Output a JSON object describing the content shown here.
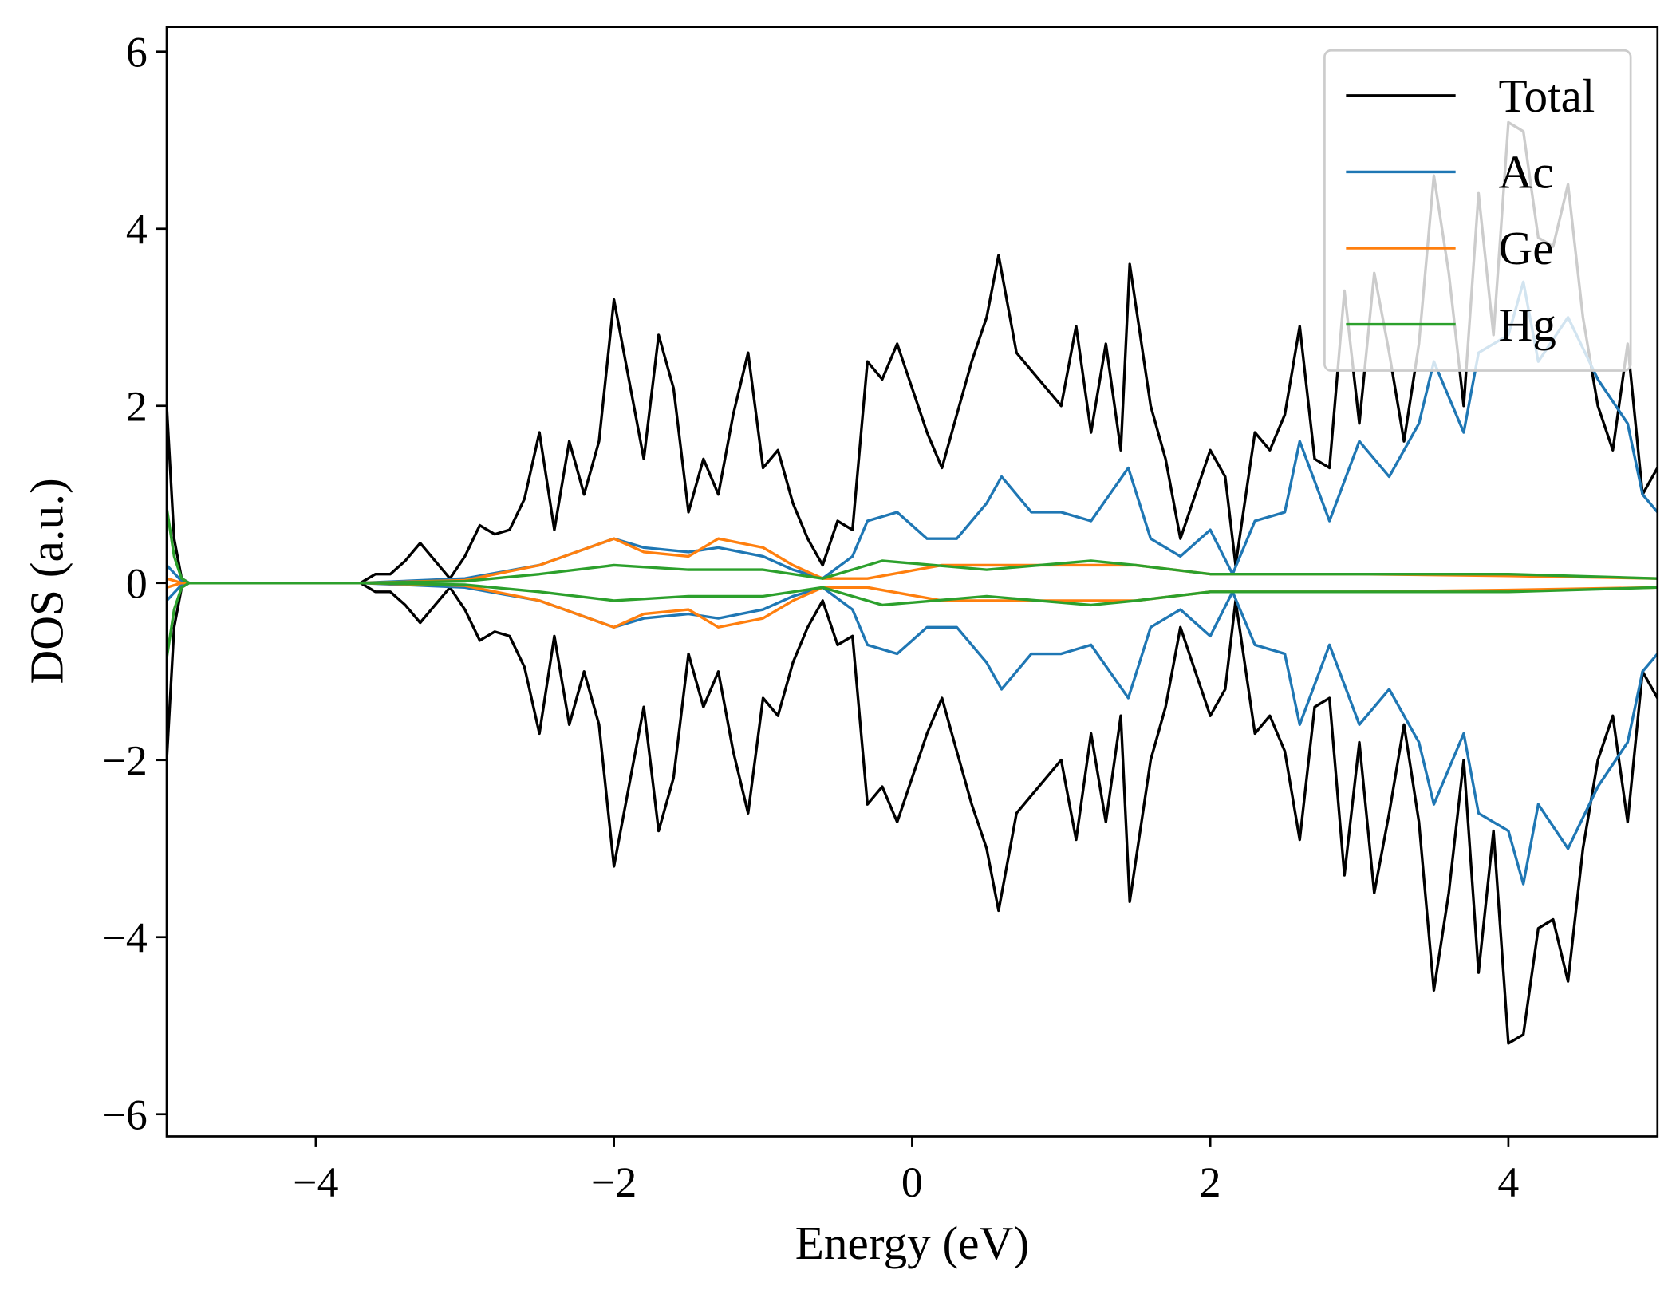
{
  "chart_data": {
    "type": "line",
    "title": "",
    "xlabel": "Energy (eV)",
    "ylabel": "DOS (a.u.)",
    "xlim": [
      -5,
      5
    ],
    "ylim": [
      -6.25,
      6.28
    ],
    "xticks": [
      -4,
      -2,
      0,
      2,
      4
    ],
    "xtick_labels": [
      "−4",
      "−2",
      "0",
      "2",
      "4"
    ],
    "yticks": [
      6,
      4,
      2,
      0,
      -2,
      -4,
      -6
    ],
    "ytick_labels": [
      "6",
      "4",
      "2",
      "0",
      "−2",
      "−4",
      "−6"
    ],
    "grid": false,
    "legend_position": "top-right",
    "mirrored_spin_down": true,
    "series": [
      {
        "name": "Total",
        "color": "#000000",
        "points": [
          [
            -5.0,
            2.0
          ],
          [
            -4.95,
            0.5
          ],
          [
            -4.9,
            0.05
          ],
          [
            -4.85,
            0
          ],
          [
            -3.7,
            0
          ],
          [
            -3.6,
            0.1
          ],
          [
            -3.5,
            0.1
          ],
          [
            -3.4,
            0.25
          ],
          [
            -3.3,
            0.45
          ],
          [
            -3.2,
            0.25
          ],
          [
            -3.1,
            0.05
          ],
          [
            -3.0,
            0.3
          ],
          [
            -2.9,
            0.65
          ],
          [
            -2.8,
            0.55
          ],
          [
            -2.7,
            0.6
          ],
          [
            -2.6,
            0.95
          ],
          [
            -2.5,
            1.7
          ],
          [
            -2.4,
            0.6
          ],
          [
            -2.3,
            1.6
          ],
          [
            -2.2,
            1.0
          ],
          [
            -2.1,
            1.6
          ],
          [
            -2.0,
            3.2
          ],
          [
            -1.9,
            2.3
          ],
          [
            -1.8,
            1.4
          ],
          [
            -1.7,
            2.8
          ],
          [
            -1.6,
            2.2
          ],
          [
            -1.5,
            0.8
          ],
          [
            -1.4,
            1.4
          ],
          [
            -1.3,
            1.0
          ],
          [
            -1.2,
            1.9
          ],
          [
            -1.1,
            2.6
          ],
          [
            -1.0,
            1.3
          ],
          [
            -0.9,
            1.5
          ],
          [
            -0.8,
            0.9
          ],
          [
            -0.7,
            0.5
          ],
          [
            -0.6,
            0.2
          ],
          [
            -0.5,
            0.7
          ],
          [
            -0.4,
            0.6
          ],
          [
            -0.3,
            2.5
          ],
          [
            -0.2,
            2.3
          ],
          [
            -0.1,
            2.7
          ],
          [
            0.0,
            2.2
          ],
          [
            0.1,
            1.7
          ],
          [
            0.2,
            1.3
          ],
          [
            0.3,
            1.9
          ],
          [
            0.4,
            2.5
          ],
          [
            0.5,
            3.0
          ],
          [
            0.58,
            3.7
          ],
          [
            0.7,
            2.6
          ],
          [
            0.8,
            2.4
          ],
          [
            0.9,
            2.2
          ],
          [
            1.0,
            2.0
          ],
          [
            1.1,
            2.9
          ],
          [
            1.2,
            1.7
          ],
          [
            1.3,
            2.7
          ],
          [
            1.4,
            1.5
          ],
          [
            1.46,
            3.6
          ],
          [
            1.6,
            2.0
          ],
          [
            1.7,
            1.4
          ],
          [
            1.8,
            0.5
          ],
          [
            1.9,
            1.0
          ],
          [
            2.0,
            1.5
          ],
          [
            2.1,
            1.2
          ],
          [
            2.17,
            0.2
          ],
          [
            2.3,
            1.7
          ],
          [
            2.4,
            1.5
          ],
          [
            2.5,
            1.9
          ],
          [
            2.6,
            2.9
          ],
          [
            2.7,
            1.4
          ],
          [
            2.8,
            1.3
          ],
          [
            2.9,
            3.3
          ],
          [
            3.0,
            1.8
          ],
          [
            3.1,
            3.5
          ],
          [
            3.2,
            2.6
          ],
          [
            3.3,
            1.6
          ],
          [
            3.4,
            2.7
          ],
          [
            3.5,
            4.6
          ],
          [
            3.6,
            3.5
          ],
          [
            3.7,
            2.0
          ],
          [
            3.8,
            4.4
          ],
          [
            3.9,
            2.8
          ],
          [
            4.0,
            5.2
          ],
          [
            4.1,
            5.1
          ],
          [
            4.2,
            3.9
          ],
          [
            4.3,
            3.8
          ],
          [
            4.4,
            4.5
          ],
          [
            4.5,
            3.0
          ],
          [
            4.6,
            2.0
          ],
          [
            4.7,
            1.5
          ],
          [
            4.8,
            2.7
          ],
          [
            4.9,
            1.0
          ],
          [
            5.0,
            1.3
          ]
        ]
      },
      {
        "name": "Ac",
        "color": "#1f77b4",
        "points": [
          [
            -5.0,
            0.2
          ],
          [
            -4.9,
            0.02
          ],
          [
            -4.85,
            0
          ],
          [
            -3.7,
            0
          ],
          [
            -3.0,
            0.05
          ],
          [
            -2.5,
            0.2
          ],
          [
            -2.0,
            0.5
          ],
          [
            -1.8,
            0.4
          ],
          [
            -1.5,
            0.35
          ],
          [
            -1.3,
            0.4
          ],
          [
            -1.0,
            0.3
          ],
          [
            -0.8,
            0.15
          ],
          [
            -0.6,
            0.05
          ],
          [
            -0.4,
            0.3
          ],
          [
            -0.3,
            0.7
          ],
          [
            -0.1,
            0.8
          ],
          [
            0.1,
            0.5
          ],
          [
            0.3,
            0.5
          ],
          [
            0.5,
            0.9
          ],
          [
            0.6,
            1.2
          ],
          [
            0.8,
            0.8
          ],
          [
            1.0,
            0.8
          ],
          [
            1.2,
            0.7
          ],
          [
            1.45,
            1.3
          ],
          [
            1.6,
            0.5
          ],
          [
            1.8,
            0.3
          ],
          [
            2.0,
            0.6
          ],
          [
            2.15,
            0.1
          ],
          [
            2.3,
            0.7
          ],
          [
            2.5,
            0.8
          ],
          [
            2.6,
            1.6
          ],
          [
            2.8,
            0.7
          ],
          [
            3.0,
            1.6
          ],
          [
            3.2,
            1.2
          ],
          [
            3.4,
            1.8
          ],
          [
            3.5,
            2.5
          ],
          [
            3.6,
            2.1
          ],
          [
            3.7,
            1.7
          ],
          [
            3.8,
            2.6
          ],
          [
            4.0,
            2.8
          ],
          [
            4.1,
            3.4
          ],
          [
            4.2,
            2.5
          ],
          [
            4.4,
            3.0
          ],
          [
            4.6,
            2.3
          ],
          [
            4.8,
            1.8
          ],
          [
            4.9,
            1.0
          ],
          [
            5.0,
            0.8
          ]
        ]
      },
      {
        "name": "Ge",
        "color": "#ff7f0e",
        "points": [
          [
            -5.0,
            0.05
          ],
          [
            -4.9,
            0
          ],
          [
            -3.7,
            0
          ],
          [
            -3.0,
            0.03
          ],
          [
            -2.5,
            0.2
          ],
          [
            -2.0,
            0.5
          ],
          [
            -1.8,
            0.35
          ],
          [
            -1.5,
            0.3
          ],
          [
            -1.3,
            0.5
          ],
          [
            -1.0,
            0.4
          ],
          [
            -0.8,
            0.2
          ],
          [
            -0.6,
            0.05
          ],
          [
            -0.3,
            0.05
          ],
          [
            0.2,
            0.2
          ],
          [
            0.5,
            0.2
          ],
          [
            1.0,
            0.2
          ],
          [
            1.5,
            0.2
          ],
          [
            2.0,
            0.1
          ],
          [
            3.0,
            0.1
          ],
          [
            4.0,
            0.08
          ],
          [
            5.0,
            0.05
          ]
        ]
      },
      {
        "name": "Hg",
        "color": "#2ca02c",
        "points": [
          [
            -5.0,
            0.85
          ],
          [
            -4.95,
            0.3
          ],
          [
            -4.9,
            0.05
          ],
          [
            -4.85,
            0
          ],
          [
            -3.7,
            0
          ],
          [
            -3.0,
            0.02
          ],
          [
            -2.5,
            0.1
          ],
          [
            -2.0,
            0.2
          ],
          [
            -1.5,
            0.15
          ],
          [
            -1.0,
            0.15
          ],
          [
            -0.6,
            0.05
          ],
          [
            -0.2,
            0.25
          ],
          [
            0.5,
            0.15
          ],
          [
            1.2,
            0.25
          ],
          [
            1.5,
            0.2
          ],
          [
            2.0,
            0.1
          ],
          [
            3.0,
            0.1
          ],
          [
            4.0,
            0.1
          ],
          [
            5.0,
            0.05
          ]
        ]
      }
    ]
  }
}
